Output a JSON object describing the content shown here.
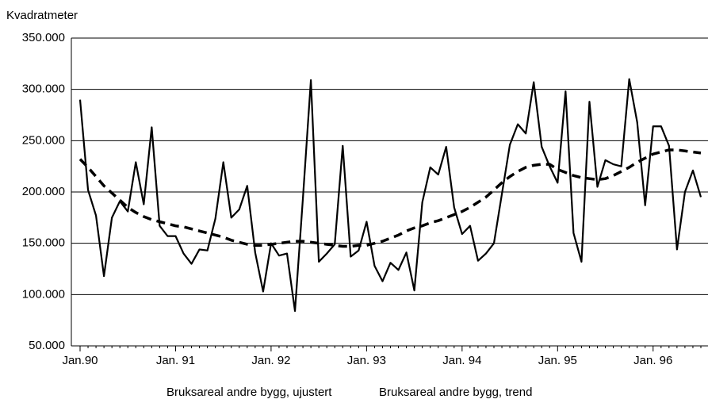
{
  "chart_data": {
    "type": "line",
    "y_label": "Kvadratmeter",
    "categories": [
      "Jan.90",
      null,
      null,
      null,
      null,
      null,
      null,
      null,
      null,
      null,
      null,
      null,
      "Jan. 91",
      null,
      null,
      null,
      null,
      null,
      null,
      null,
      null,
      null,
      null,
      null,
      "Jan. 92",
      null,
      null,
      null,
      null,
      null,
      null,
      null,
      null,
      null,
      null,
      null,
      "Jan. 93",
      null,
      null,
      null,
      null,
      null,
      null,
      null,
      null,
      null,
      null,
      null,
      "Jan. 94",
      null,
      null,
      null,
      null,
      null,
      null,
      null,
      null,
      null,
      null,
      null,
      "Jan. 95",
      null,
      null,
      null,
      null,
      null,
      null,
      null,
      null,
      null,
      null,
      null,
      "Jan. 96",
      null,
      null,
      null,
      null,
      null,
      null
    ],
    "series": [
      {
        "name": "Bruksareal andre bygg, ujustert",
        "color": "#000000",
        "dashed": false,
        "values": [
          290000,
          202000,
          177000,
          118000,
          175000,
          191000,
          181000,
          229000,
          188000,
          263000,
          167000,
          157000,
          157000,
          140000,
          130000,
          144000,
          143000,
          174000,
          229000,
          175000,
          183000,
          206000,
          141000,
          103000,
          150000,
          138000,
          140000,
          84000,
          194000,
          309000,
          132000,
          140000,
          149000,
          245000,
          137000,
          143000,
          171000,
          128000,
          113000,
          131000,
          124000,
          141000,
          104000,
          190000,
          224000,
          217000,
          244000,
          185000,
          159000,
          167000,
          133000,
          140000,
          150000,
          198000,
          246000,
          266000,
          257000,
          307000,
          244000,
          225000,
          209000,
          298000,
          160000,
          132000,
          288000,
          205000,
          231000,
          227000,
          225000,
          310000,
          268000,
          187000,
          264000,
          264000,
          245000,
          144000,
          200000,
          221000,
          195000
        ]
      },
      {
        "name": "Bruksareal andre bygg, trend",
        "color": "#000000",
        "dashed": true,
        "values": [
          232000,
          224000,
          215000,
          206000,
          199000,
          192000,
          185000,
          180000,
          176000,
          173000,
          171000,
          169000,
          167000,
          166000,
          164000,
          162000,
          160000,
          158000,
          156000,
          153000,
          151000,
          149000,
          148000,
          148000,
          149000,
          150000,
          151000,
          152000,
          152000,
          151000,
          150000,
          149000,
          148000,
          147000,
          147000,
          148000,
          148000,
          150000,
          152000,
          155000,
          158000,
          162000,
          165000,
          167000,
          170000,
          172000,
          175000,
          178000,
          181000,
          185000,
          190000,
          195000,
          202000,
          209000,
          215000,
          220000,
          224000,
          226000,
          227000,
          227000,
          222000,
          219000,
          216000,
          214000,
          213000,
          212000,
          213000,
          216000,
          220000,
          224000,
          229000,
          233000,
          237000,
          239000,
          241000,
          241000,
          240000,
          239000,
          238000
        ]
      }
    ],
    "ylim": [
      50000,
      350000
    ],
    "yticks": [
      {
        "value": 50000,
        "label": "50.000"
      },
      {
        "value": 100000,
        "label": "100.000"
      },
      {
        "value": 150000,
        "label": "150.000"
      },
      {
        "value": 200000,
        "label": "200.000"
      },
      {
        "value": 250000,
        "label": "250.000"
      },
      {
        "value": 300000,
        "label": "300.000"
      },
      {
        "value": 350000,
        "label": "350.000"
      }
    ],
    "grid": true
  }
}
